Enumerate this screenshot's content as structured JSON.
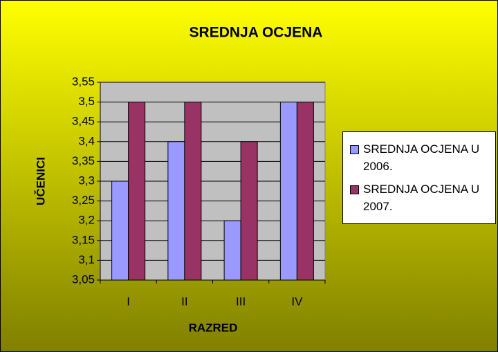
{
  "chart_data": {
    "type": "bar",
    "title": "SREDNJA OCJENA",
    "xlabel": "RAZRED",
    "ylabel": "UČENICI",
    "categories": [
      "I",
      "II",
      "III",
      "IV"
    ],
    "series": [
      {
        "name": "SREDNJA OCJENA U 2006.",
        "color": "#9999ff",
        "values": [
          3.3,
          3.4,
          3.2,
          3.5
        ]
      },
      {
        "name": "SREDNJA OCJENA U 2007.",
        "color": "#993366",
        "values": [
          3.5,
          3.5,
          3.4,
          3.5
        ]
      }
    ],
    "ylim": [
      3.05,
      3.55
    ],
    "yticks": [
      {
        "value": 3.05,
        "label": "3,05"
      },
      {
        "value": 3.1,
        "label": "3,1"
      },
      {
        "value": 3.15,
        "label": "3,15"
      },
      {
        "value": 3.2,
        "label": "3,2"
      },
      {
        "value": 3.25,
        "label": "3,25"
      },
      {
        "value": 3.3,
        "label": "3,3"
      },
      {
        "value": 3.35,
        "label": "3,35"
      },
      {
        "value": 3.4,
        "label": "3,4"
      },
      {
        "value": 3.45,
        "label": "3,45"
      },
      {
        "value": 3.5,
        "label": "3,5"
      },
      {
        "value": 3.55,
        "label": "3,55"
      }
    ],
    "grid": true,
    "legend": "right"
  }
}
